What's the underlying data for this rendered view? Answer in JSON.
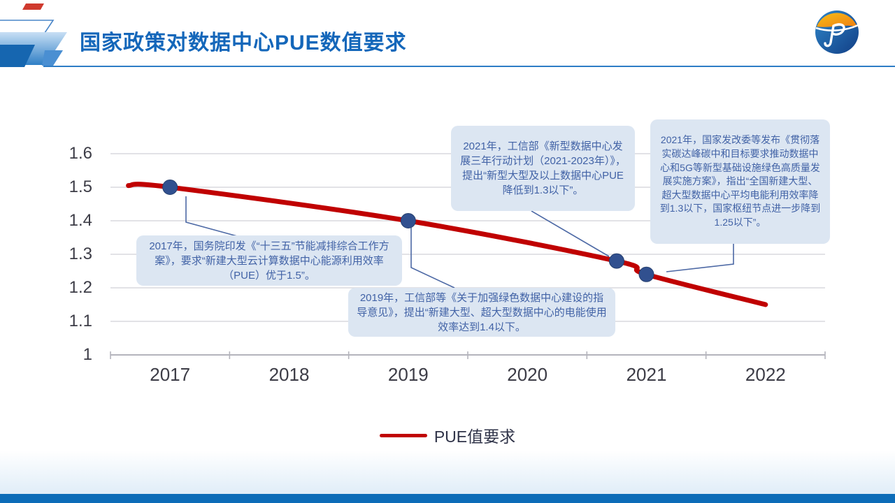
{
  "slide": {
    "title": "国家政策对数据中心PUE数值要求"
  },
  "legend": {
    "label": "PUE值要求"
  },
  "chart_data": {
    "type": "line",
    "title": "",
    "xlabel": "",
    "ylabel": "",
    "x_ticks": [
      "2017",
      "2018",
      "2019",
      "2020",
      "2021",
      "2022"
    ],
    "y_ticks": [
      {
        "label": "1.6",
        "value": 1.6
      },
      {
        "label": "1.5",
        "value": 1.5
      },
      {
        "label": "1.4",
        "value": 1.4
      },
      {
        "label": "1.3",
        "value": 1.3
      },
      {
        "label": "1.2",
        "value": 1.2
      },
      {
        "label": "1.1",
        "value": 1.1
      },
      {
        "label": "1",
        "value": 1.0
      }
    ],
    "ylim": [
      1.0,
      1.6
    ],
    "xlim": [
      2016.5,
      2022.5
    ],
    "grid": "horizontal",
    "legend_position": "bottom",
    "series": [
      {
        "name": "PUE值要求",
        "color": "#c00000",
        "marker_color": "#31508f",
        "line_points": [
          [
            2016.65,
            1.505
          ],
          [
            2017,
            1.5
          ],
          [
            2019,
            1.4
          ],
          [
            2020.75,
            1.28
          ],
          [
            2021,
            1.24
          ],
          [
            2022,
            1.15
          ]
        ],
        "markers": [
          [
            2017,
            1.5
          ],
          [
            2019,
            1.4
          ],
          [
            2020.75,
            1.28
          ],
          [
            2021,
            1.24
          ]
        ]
      }
    ]
  },
  "annotations": [
    {
      "text": "2017年，国务院印发《“十三五”节能减排综合工作方案》，要求“新建大型云计算数据中心能源利用效率（PUE）优于1.5”。"
    },
    {
      "text": "2019年，工信部等《关于加强绿色数据中心建设的指导意见》，提出“新建大型、超大型数据中心的电能使用效率达到1.4以下。"
    },
    {
      "text": "2021年，工信部《新型数据中心发展三年行动计划（2021-2023年）》，提出“新型大型及以上数据中心PUE降低到1.3以下”。"
    },
    {
      "text": "2021年，国家发改委等发布《贯彻落实碳达峰碳中和目标要求推动数据中心和5G等新型基础设施绿色高质量发展实施方案》，指出“全国新建大型、超大型数据中心平均电能利用效率降到1.3以下，国家枢纽节点进一步降到1.25以下”。"
    }
  ],
  "colors": {
    "title": "#1467ba",
    "line": "#c00000",
    "marker": "#31508f",
    "callout_bg": "#dce6f2",
    "callout_text": "#4162a6",
    "connector": "#4d69a5",
    "bottom_bar": "#0c6cb8",
    "gridline": "#d8d8dd",
    "axis": "#b4b4bc"
  }
}
